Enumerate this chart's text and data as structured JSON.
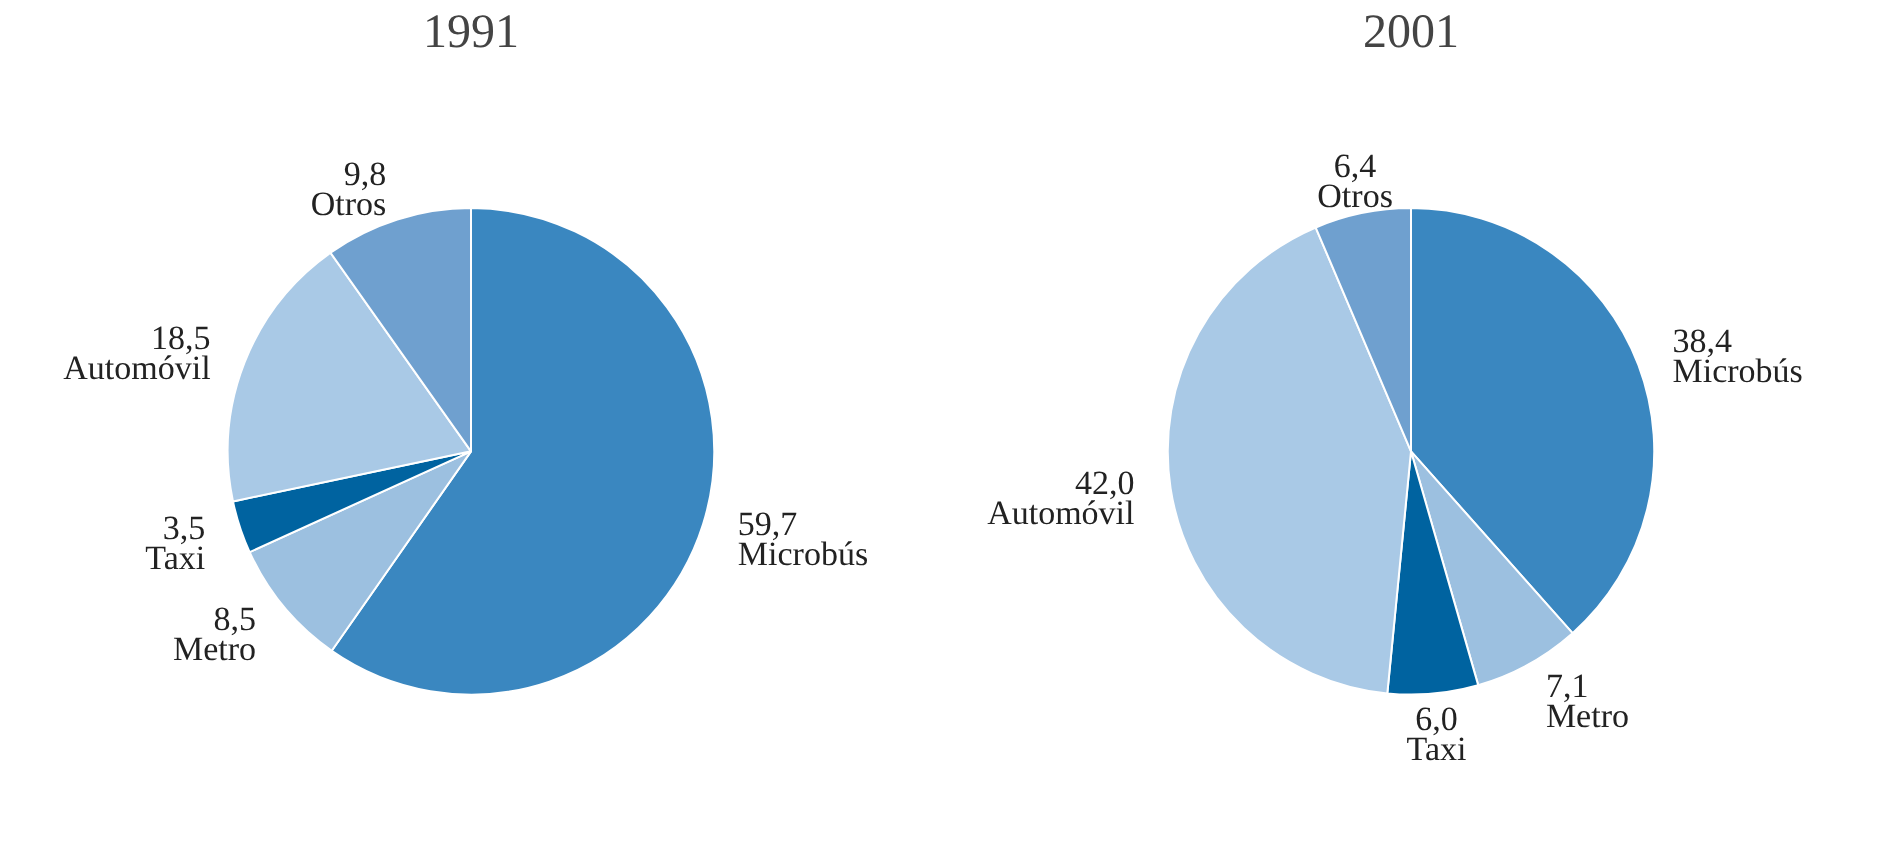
{
  "chart_data": [
    {
      "type": "pie",
      "title": "1991",
      "categories": [
        "Microbús",
        "Metro",
        "Taxi",
        "Automóvil",
        "Otros"
      ],
      "values": [
        59.7,
        8.5,
        3.5,
        18.5,
        9.8
      ],
      "value_labels": [
        "59,7",
        "8,5",
        "3,5",
        "18,5",
        "9,8"
      ],
      "colors": [
        "#3a87c0",
        "#9cc0e0",
        "#0063a0",
        "#a9c9e6",
        "#6fa0cf"
      ]
    },
    {
      "type": "pie",
      "title": "2001",
      "categories": [
        "Microbús",
        "Metro",
        "Taxi",
        "Automóvil",
        "Otros"
      ],
      "values": [
        38.4,
        7.1,
        6.0,
        42.0,
        6.4
      ],
      "value_labels": [
        "38,4",
        "7,1",
        "6,0",
        "42,0",
        "6,4"
      ],
      "colors": [
        "#3a87c0",
        "#9cc0e0",
        "#0063a0",
        "#a9c9e6",
        "#6fa0cf"
      ]
    }
  ]
}
